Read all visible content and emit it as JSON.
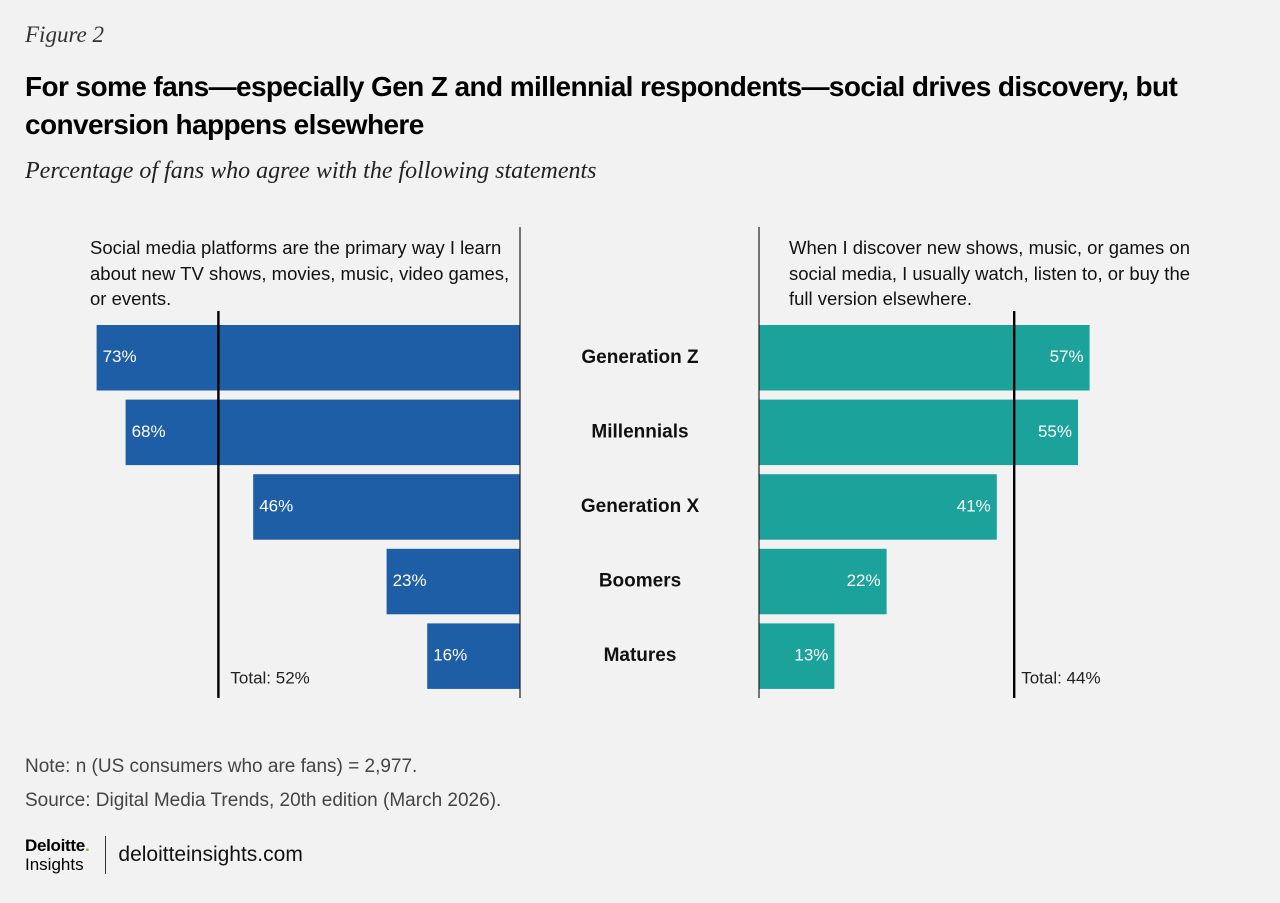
{
  "figure_label": "Figure 2",
  "title": "For some fans—especially Gen Z and millennial respondents—social drives discovery, but conversion happens elsewhere",
  "subtitle": "Percentage of fans who agree with the following statements",
  "colors": {
    "left_bar": "#1d5ea7",
    "right_bar": "#1ba39b",
    "background": "#f2f2f3",
    "logo_accent": "#86bc25"
  },
  "chart_data": {
    "type": "bar",
    "orientation": "horizontal-butterfly",
    "categories": [
      "Generation Z",
      "Millennials",
      "Generation X",
      "Boomers",
      "Matures"
    ],
    "series": [
      {
        "name": "Social media platforms are the primary way I learn about new TV shows, movies, music, video games, or events.",
        "values": [
          73,
          68,
          46,
          23,
          16
        ],
        "labels": [
          "73%",
          "68%",
          "46%",
          "23%",
          "16%"
        ],
        "total": 52,
        "total_label": "Total: 52%"
      },
      {
        "name": "When I discover new shows, music, or games on social media, I usually watch, listen to, or buy the full version elsewhere.",
        "values": [
          57,
          55,
          41,
          22,
          13
        ],
        "labels": [
          "57%",
          "55%",
          "41%",
          "22%",
          "13%"
        ],
        "total": 44,
        "total_label": "Total: 44%"
      }
    ],
    "unit": "%"
  },
  "notes": {
    "note": "Note: n (US consumers who are fans) = 2,977.",
    "source": "Source: Digital Media Trends, 20th edition (March 2026)."
  },
  "footer": {
    "logo_name": "Deloitte",
    "logo_dot": ".",
    "logo_sub": "Insights",
    "site": "deloitteinsights.com"
  }
}
